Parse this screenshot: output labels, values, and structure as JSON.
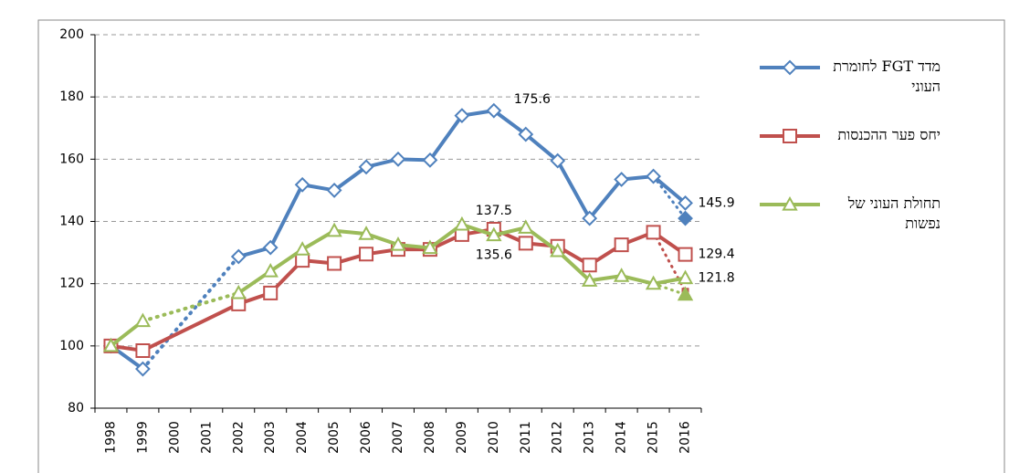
{
  "chart_data": {
    "type": "line",
    "categories": [
      "1998",
      "1999",
      "2000",
      "2001",
      "2002",
      "2003",
      "2004",
      "2005",
      "2006",
      "2007",
      "2008",
      "2009",
      "2010",
      "2011",
      "2012",
      "2013",
      "2014",
      "2015",
      "2016"
    ],
    "ylim": [
      80,
      200
    ],
    "yticks": [
      80,
      100,
      120,
      140,
      160,
      180,
      200
    ],
    "grid": true,
    "legend": "right",
    "series": [
      {
        "name": "מדד FGT לחומרת העוני",
        "color": "#4f81bd",
        "marker": "diamond",
        "gaps": "dotted",
        "values": [
          100,
          92.6,
          null,
          null,
          128.7,
          131.6,
          151.8,
          150,
          157.5,
          160,
          159.7,
          174,
          175.6,
          168,
          159.5,
          141,
          153.5,
          154.5,
          145.9
        ],
        "estimate": 141,
        "labeled": [
          12,
          18
        ]
      },
      {
        "name": "יחס פער ההכנסות",
        "color": "#c0504d",
        "marker": "square",
        "gaps": "solid",
        "values": [
          100,
          98.5,
          null,
          null,
          113.5,
          117,
          127.5,
          126.5,
          129.5,
          131,
          131,
          135.8,
          137.5,
          133,
          132,
          126,
          132.5,
          136.5,
          129.4
        ],
        "estimate": 117.5,
        "labeled": [
          12,
          18
        ]
      },
      {
        "name": "תחולת העוני של נפשות",
        "color": "#9bbb59",
        "marker": "triangle",
        "gaps": "dotted",
        "values": [
          100,
          108,
          null,
          null,
          117,
          124,
          131,
          137,
          136,
          132.5,
          131.5,
          139,
          135.6,
          138,
          130.5,
          121,
          122.5,
          120,
          121.8
        ],
        "estimate": 116.5,
        "labeled": [
          12,
          18
        ]
      }
    ]
  }
}
